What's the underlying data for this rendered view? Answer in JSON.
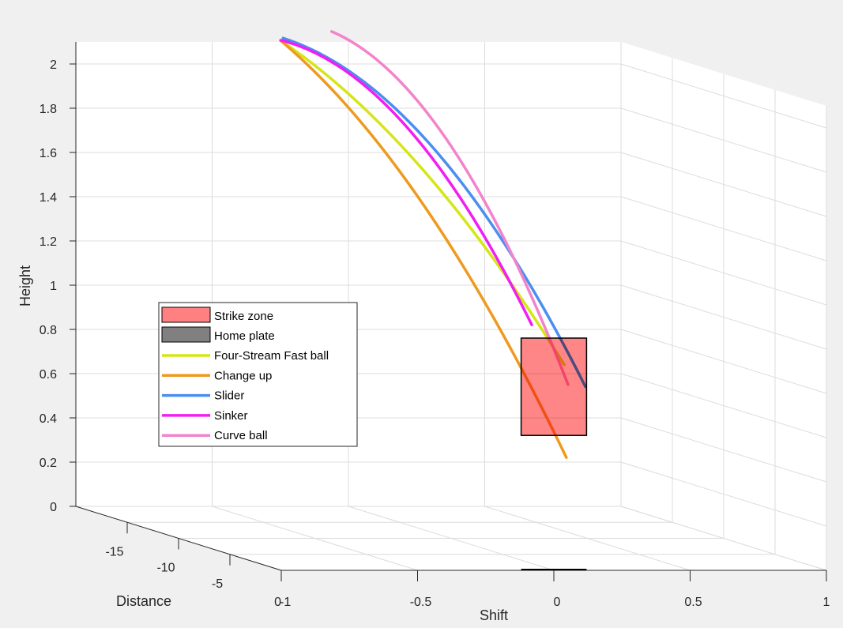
{
  "chart_data": {
    "type": "line",
    "dimensions": "3d",
    "xlabel": "Shift",
    "ylabel": "Distance",
    "zlabel": "Height",
    "xlim": [
      -1,
      1
    ],
    "ylim": [
      -20,
      0
    ],
    "zlim": [
      0,
      2.1
    ],
    "x_ticks": [
      "-1",
      "-0.5",
      "0",
      "0.5",
      "1"
    ],
    "y_ticks": [
      "-15",
      "-10",
      "-5",
      "0"
    ],
    "z_ticks": [
      "0",
      "0.2",
      "0.4",
      "0.6",
      "0.8",
      "1",
      "1.2",
      "1.4",
      "1.6",
      "1.8",
      "2"
    ],
    "grid": true,
    "legend_position": "center-left",
    "strike_zone": {
      "label": "Strike zone",
      "color": "#ff8080",
      "shift": [
        -0.12,
        0.12
      ],
      "height": [
        0.61,
        1.05
      ],
      "distance": 0
    },
    "home_plate": {
      "label": "Home plate",
      "color": "#808080",
      "shift": [
        -0.12,
        0.12
      ]
    },
    "series": [
      {
        "name": "Four-Stream Fast ball",
        "color": "#d4e617",
        "distance": [
          -18.4,
          -9.2,
          0
        ],
        "shift": [
          -0.31,
          -0.135,
          0.038
        ],
        "height": [
          2.13,
          1.68,
          0.93
        ]
      },
      {
        "name": "Change up",
        "color": "#ee9a1f",
        "distance": [
          -18.4,
          -9.2,
          0
        ],
        "shift": [
          -0.31,
          -0.132,
          0.046
        ],
        "height": [
          2.13,
          1.52,
          0.51
        ]
      },
      {
        "name": "Slider",
        "color": "#4a8ff0",
        "distance": [
          -18.4,
          -9.2,
          0
        ],
        "shift": [
          -0.3,
          -0.091,
          0.116
        ],
        "height": [
          2.14,
          1.77,
          0.83
        ]
      },
      {
        "name": "Sinker",
        "color": "#f21df2",
        "distance": [
          -18.4,
          -9.2,
          0
        ],
        "shift": [
          -0.307,
          -0.192,
          -0.081
        ],
        "height": [
          2.13,
          1.87,
          1.11
        ]
      },
      {
        "name": "Curve ball",
        "color": "#f283cc",
        "distance": [
          -18.4,
          -9.2,
          0
        ],
        "shift": [
          -0.122,
          -0.033,
          0.052
        ],
        "height": [
          2.17,
          1.79,
          0.84
        ]
      }
    ]
  }
}
